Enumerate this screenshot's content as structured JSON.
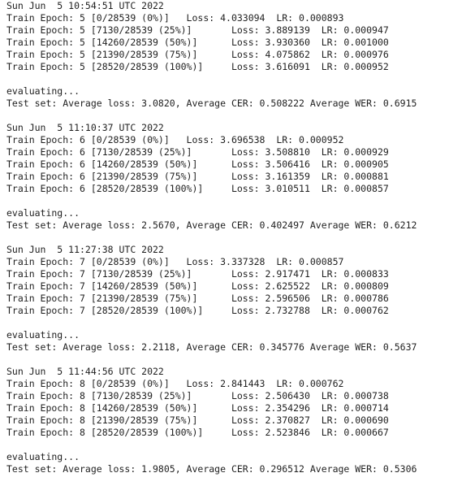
{
  "log": {
    "lines": [
      "Sun Jun  5 10:54:51 UTC 2022",
      "Train Epoch: 5 [0/28539 (0%)]   Loss: 4.033094  LR: 0.000893",
      "Train Epoch: 5 [7130/28539 (25%)]       Loss: 3.889139  LR: 0.000947",
      "Train Epoch: 5 [14260/28539 (50%)]      Loss: 3.930360  LR: 0.001000",
      "Train Epoch: 5 [21390/28539 (75%)]      Loss: 4.075862  LR: 0.000976",
      "Train Epoch: 5 [28520/28539 (100%)]     Loss: 3.616091  LR: 0.000952",
      "",
      "evaluating...",
      "Test set: Average loss: 3.0820, Average CER: 0.508222 Average WER: 0.6915",
      "",
      "Sun Jun  5 11:10:37 UTC 2022",
      "Train Epoch: 6 [0/28539 (0%)]   Loss: 3.696538  LR: 0.000952",
      "Train Epoch: 6 [7130/28539 (25%)]       Loss: 3.508810  LR: 0.000929",
      "Train Epoch: 6 [14260/28539 (50%)]      Loss: 3.506416  LR: 0.000905",
      "Train Epoch: 6 [21390/28539 (75%)]      Loss: 3.161359  LR: 0.000881",
      "Train Epoch: 6 [28520/28539 (100%)]     Loss: 3.010511  LR: 0.000857",
      "",
      "evaluating...",
      "Test set: Average loss: 2.5670, Average CER: 0.402497 Average WER: 0.6212",
      "",
      "Sun Jun  5 11:27:38 UTC 2022",
      "Train Epoch: 7 [0/28539 (0%)]   Loss: 3.337328  LR: 0.000857",
      "Train Epoch: 7 [7130/28539 (25%)]       Loss: 2.917471  LR: 0.000833",
      "Train Epoch: 7 [14260/28539 (50%)]      Loss: 2.625522  LR: 0.000809",
      "Train Epoch: 7 [21390/28539 (75%)]      Loss: 2.596506  LR: 0.000786",
      "Train Epoch: 7 [28520/28539 (100%)]     Loss: 2.732788  LR: 0.000762",
      "",
      "evaluating...",
      "Test set: Average loss: 2.2118, Average CER: 0.345776 Average WER: 0.5637",
      "",
      "Sun Jun  5 11:44:56 UTC 2022",
      "Train Epoch: 8 [0/28539 (0%)]   Loss: 2.841443  LR: 0.000762",
      "Train Epoch: 8 [7130/28539 (25%)]       Loss: 2.506430  LR: 0.000738",
      "Train Epoch: 8 [14260/28539 (50%)]      Loss: 2.354296  LR: 0.000714",
      "Train Epoch: 8 [21390/28539 (75%)]      Loss: 2.370827  LR: 0.000690",
      "Train Epoch: 8 [28520/28539 (100%)]     Loss: 2.523846  LR: 0.000667",
      "",
      "evaluating...",
      "Test set: Average loss: 1.9805, Average CER: 0.296512 Average WER: 0.5306"
    ]
  }
}
